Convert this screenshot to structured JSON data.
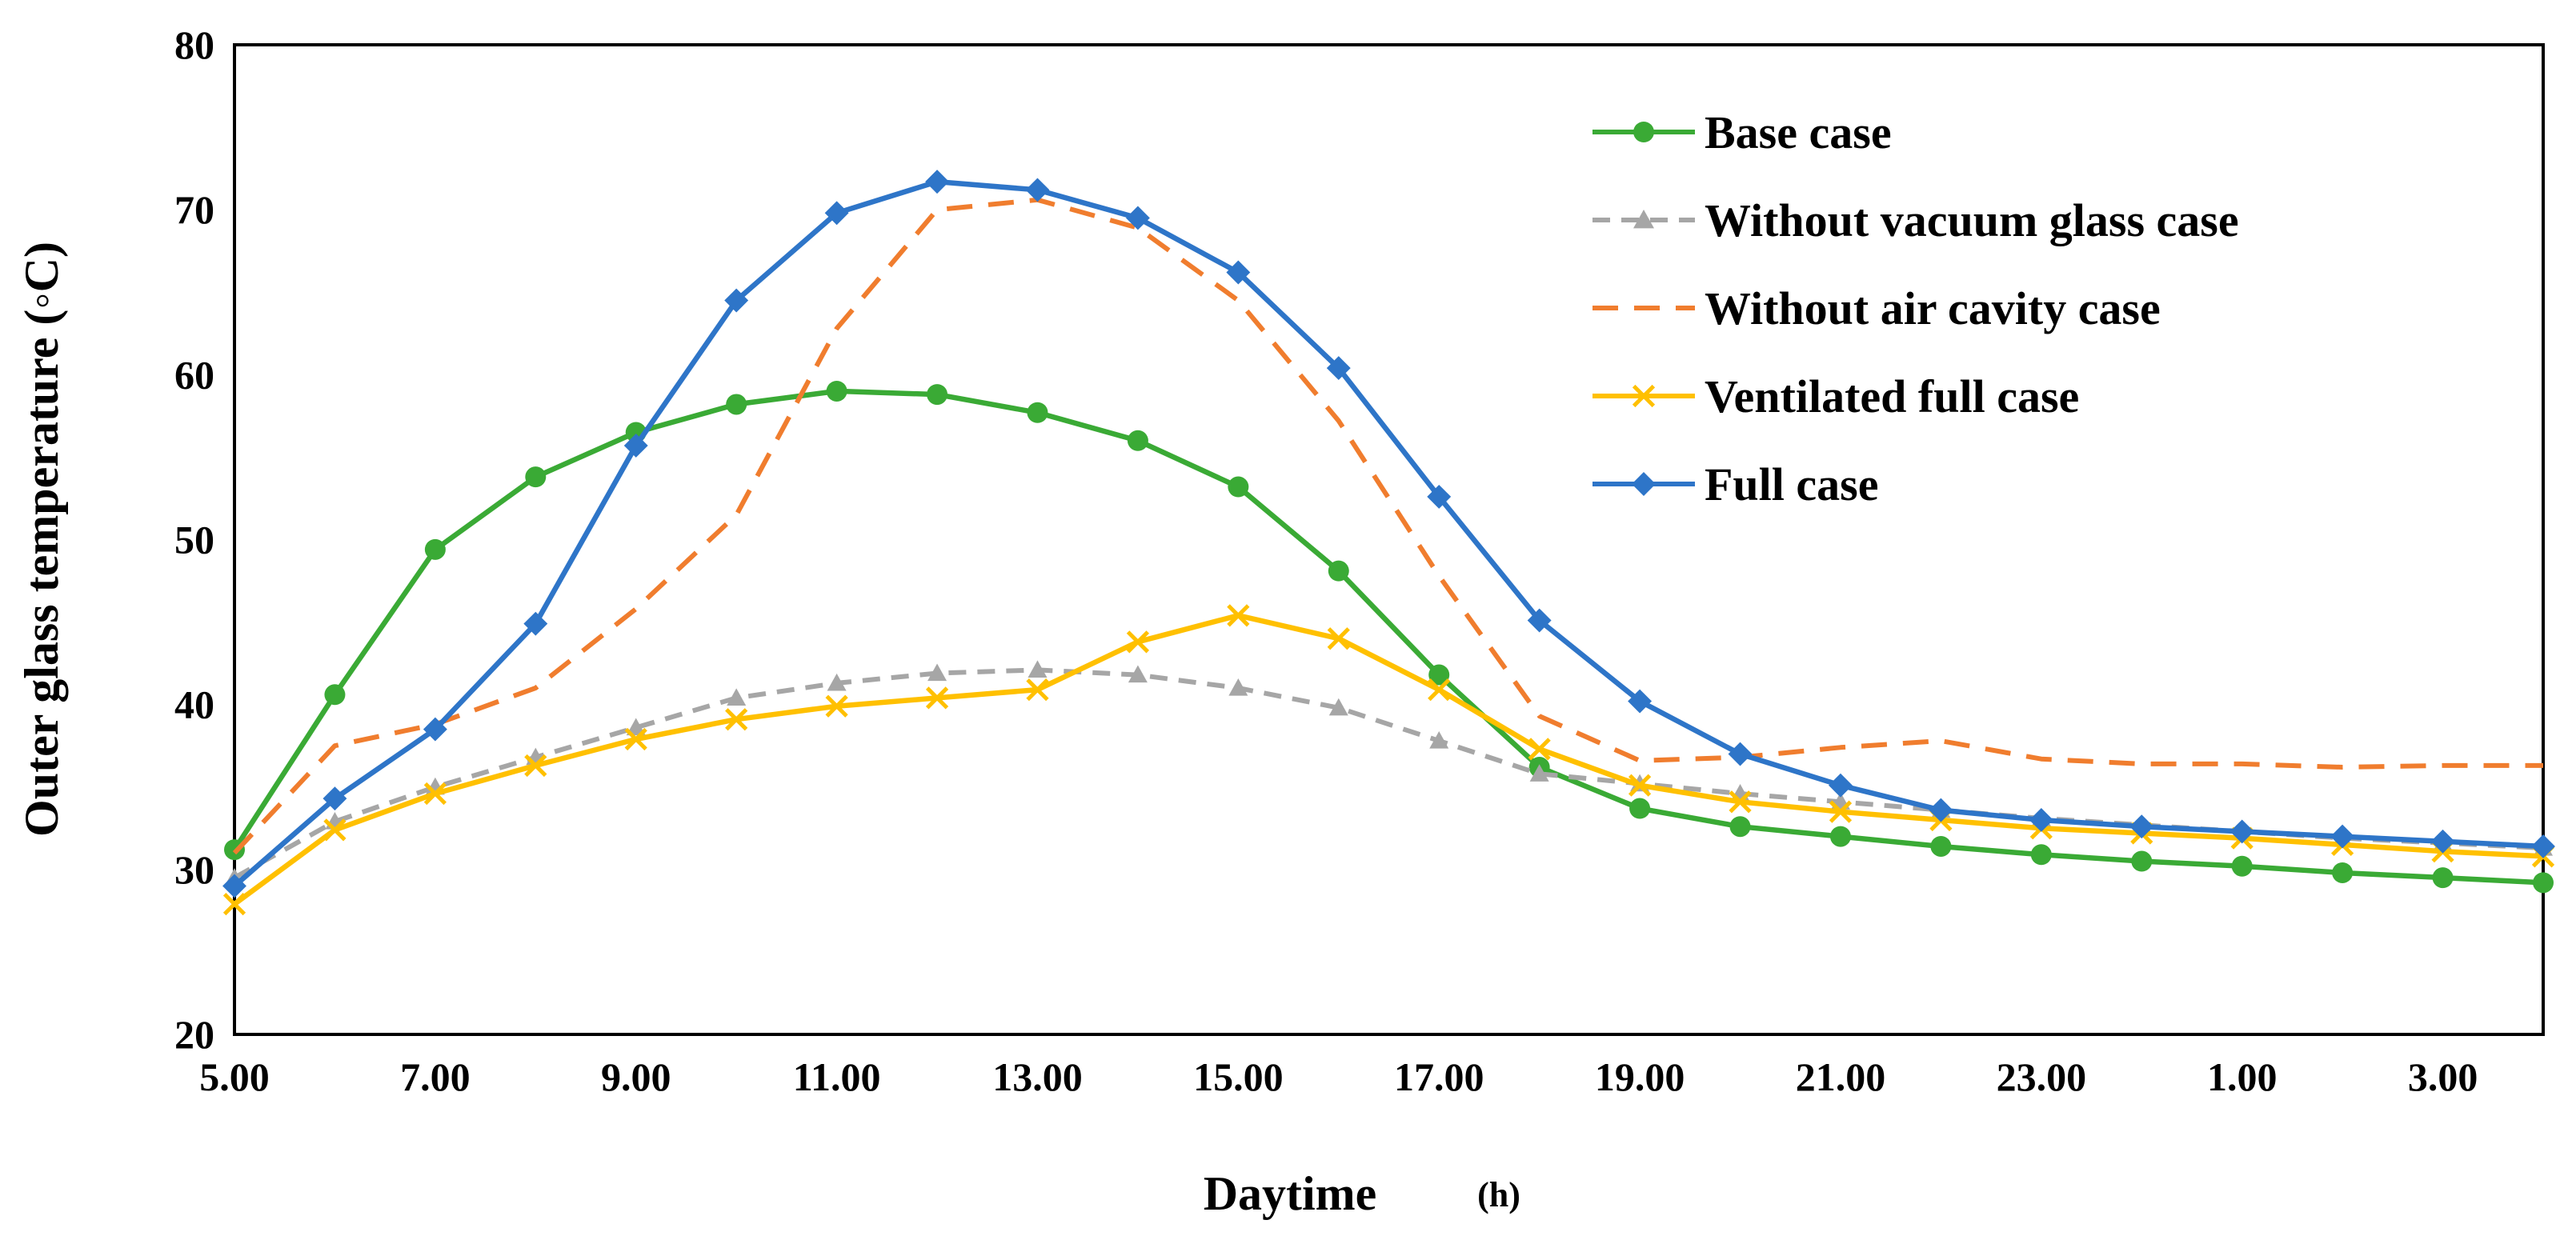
{
  "chart_data": {
    "type": "line",
    "title": "",
    "xlabel": "Daytime",
    "xlabel_unit": "(h)",
    "ylabel": "Outer glass temperature  (◦C)",
    "ylim": [
      20,
      80
    ],
    "yticks": [
      "20",
      "30",
      "40",
      "50",
      "60",
      "70",
      "80"
    ],
    "xtick_labels": [
      "5.00",
      "7.00",
      "9.00",
      "11.00",
      "13.00",
      "15.00",
      "17.00",
      "19.00",
      "21.00",
      "23.00",
      "1.00",
      "3.00"
    ],
    "x": [
      5,
      6,
      7,
      8,
      9,
      10,
      11,
      12,
      13,
      14,
      15,
      16,
      17,
      18,
      19,
      20,
      21,
      22,
      23,
      24,
      25,
      26,
      27,
      28
    ],
    "legend_position": "top-right",
    "series": [
      {
        "name": "Base case",
        "color": "#3aaa35",
        "dash": "solid",
        "marker": "circle",
        "values": [
          31.2,
          40.6,
          49.4,
          53.8,
          56.5,
          58.2,
          59.0,
          58.8,
          57.7,
          56.0,
          53.2,
          48.1,
          41.8,
          36.2,
          33.7,
          32.6,
          32.0,
          31.4,
          30.9,
          30.5,
          30.2,
          29.8,
          29.5,
          29.2
        ]
      },
      {
        "name": "Without vacuum glass case",
        "color": "#a6a6a6",
        "dash": "dashed",
        "marker": "triangle",
        "values": [
          29.5,
          32.9,
          35.0,
          36.8,
          38.6,
          40.4,
          41.3,
          41.9,
          42.1,
          41.8,
          41.0,
          39.8,
          37.8,
          35.8,
          35.2,
          34.6,
          34.1,
          33.6,
          33.1,
          32.7,
          32.3,
          31.9,
          31.6,
          31.3
        ]
      },
      {
        "name": "Without air cavity case",
        "color": "#f07d2e",
        "dash": "dashed",
        "marker": "none",
        "values": [
          31.0,
          37.5,
          38.8,
          41.0,
          45.8,
          51.5,
          62.8,
          70.0,
          70.6,
          68.9,
          64.5,
          57.2,
          47.8,
          39.3,
          36.6,
          36.8,
          37.4,
          37.8,
          36.7,
          36.4,
          36.4,
          36.2,
          36.3,
          36.3
        ]
      },
      {
        "name": "Ventilated full case",
        "color": "#ffc000",
        "dash": "solid",
        "marker": "x",
        "values": [
          27.9,
          32.4,
          34.6,
          36.3,
          37.9,
          39.1,
          39.9,
          40.4,
          40.9,
          43.8,
          45.4,
          44.0,
          40.9,
          37.3,
          35.1,
          34.1,
          33.5,
          33.0,
          32.5,
          32.2,
          31.9,
          31.5,
          31.1,
          30.8
        ]
      },
      {
        "name": "Full case",
        "color": "#2e75c8",
        "dash": "solid",
        "marker": "diamond",
        "values": [
          29.0,
          34.3,
          38.5,
          44.9,
          55.7,
          64.5,
          69.8,
          71.7,
          71.2,
          69.5,
          66.2,
          60.4,
          52.6,
          45.1,
          40.2,
          37.0,
          35.1,
          33.6,
          33.0,
          32.6,
          32.3,
          32.0,
          31.7,
          31.4
        ]
      }
    ]
  }
}
